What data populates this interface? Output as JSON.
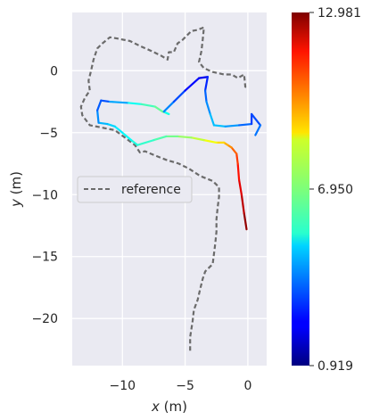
{
  "chart_data": {
    "type": "line",
    "xlabel_var": "x",
    "xlabel_unit": " (m)",
    "ylabel_var": "y",
    "ylabel_unit": " (m)",
    "xlim": [
      -14,
      1.5
    ],
    "ylim": [
      -23.8,
      4.7
    ],
    "x_ticks": [
      -10,
      -5,
      0
    ],
    "x_tick_labels": [
      "−10",
      "−5",
      "0"
    ],
    "y_ticks": [
      0,
      -5,
      -10,
      -15,
      -20
    ],
    "y_tick_labels": [
      "0",
      "−5",
      "−10",
      "−15",
      "−20"
    ],
    "grid": true,
    "legend_placement": "center-left",
    "colorbar": {
      "min": 0.919,
      "max": 12.981,
      "ticks": [
        12.981,
        6.95,
        0.919
      ],
      "tick_labels": [
        "12.981",
        "6.950",
        "0.919"
      ],
      "colormap": "jet"
    },
    "series": [
      {
        "name": "reference",
        "style": "dashed",
        "color": "#6b6b6b",
        "points": [
          [
            -4.6,
            -22.6
          ],
          [
            -4.6,
            -21.5
          ],
          [
            -4.4,
            -20.2
          ],
          [
            -4.3,
            -19.3
          ],
          [
            -4.0,
            -18.5
          ],
          [
            -3.8,
            -17.6
          ],
          [
            -3.6,
            -16.8
          ],
          [
            -3.4,
            -16.2
          ],
          [
            -2.8,
            -15.6
          ],
          [
            -2.7,
            -14.8
          ],
          [
            -2.6,
            -14.0
          ],
          [
            -2.5,
            -13.0
          ],
          [
            -2.5,
            -12.0
          ],
          [
            -2.4,
            -11.0
          ],
          [
            -2.3,
            -10.2
          ],
          [
            -2.3,
            -9.4
          ],
          [
            -2.8,
            -8.9
          ],
          [
            -3.8,
            -8.5
          ],
          [
            -4.7,
            -7.9
          ],
          [
            -5.5,
            -7.5
          ],
          [
            -6.5,
            -7.2
          ],
          [
            -7.5,
            -6.8
          ],
          [
            -8.2,
            -6.5
          ],
          [
            -8.6,
            -6.6
          ],
          [
            -9.0,
            -6.0
          ],
          [
            -9.8,
            -5.4
          ],
          [
            -10.6,
            -4.8
          ],
          [
            -11.6,
            -4.6
          ],
          [
            -12.6,
            -4.4
          ],
          [
            -13.2,
            -3.6
          ],
          [
            -13.3,
            -2.9
          ],
          [
            -13.0,
            -2.2
          ],
          [
            -12.6,
            -1.6
          ],
          [
            -12.7,
            -0.8
          ],
          [
            -12.5,
            0.0
          ],
          [
            -12.3,
            0.9
          ],
          [
            -12.0,
            1.8
          ],
          [
            -11.6,
            2.2
          ],
          [
            -11.0,
            2.7
          ],
          [
            -10.4,
            2.6
          ],
          [
            -9.4,
            2.4
          ],
          [
            -8.6,
            2.0
          ],
          [
            -7.7,
            1.6
          ],
          [
            -6.9,
            1.2
          ],
          [
            -6.4,
            0.9
          ],
          [
            -6.3,
            1.5
          ],
          [
            -5.9,
            1.5
          ],
          [
            -5.6,
            2.2
          ],
          [
            -5.2,
            2.5
          ],
          [
            -4.5,
            3.2
          ],
          [
            -4.0,
            3.3
          ],
          [
            -3.5,
            3.5
          ],
          [
            -3.6,
            2.5
          ],
          [
            -3.7,
            1.6
          ],
          [
            -3.9,
            0.7
          ],
          [
            -3.5,
            0.2
          ],
          [
            -2.8,
            -0.1
          ],
          [
            -1.9,
            -0.3
          ],
          [
            -1.3,
            -0.3
          ],
          [
            -0.8,
            -0.6
          ],
          [
            -0.3,
            -0.3
          ],
          [
            -0.2,
            -1.3
          ],
          [
            -0.4,
            -1.5
          ]
        ]
      },
      {
        "name": "",
        "style": "colored",
        "points": [
          [
            -0.1,
            -12.8,
            12.981
          ],
          [
            -0.3,
            -11.5,
            12.5
          ],
          [
            -0.5,
            -10.0,
            12.0
          ],
          [
            -0.7,
            -8.8,
            11.6
          ],
          [
            -0.8,
            -7.5,
            11.0
          ],
          [
            -0.9,
            -6.7,
            10.6
          ],
          [
            -1.3,
            -6.2,
            10.0
          ],
          [
            -1.6,
            -6.0,
            9.6
          ],
          [
            -1.9,
            -5.8,
            9.2
          ],
          [
            -2.5,
            -5.8,
            8.6
          ],
          [
            -3.5,
            -5.6,
            8.0
          ],
          [
            -4.5,
            -5.4,
            7.5
          ],
          [
            -5.6,
            -5.3,
            7.0
          ],
          [
            -6.5,
            -5.3,
            6.6
          ],
          [
            -7.5,
            -5.6,
            6.2
          ],
          [
            -8.8,
            -6.0,
            5.9
          ],
          [
            -9.3,
            -5.6,
            5.7
          ],
          [
            -10.0,
            -5.0,
            5.4
          ],
          [
            -10.6,
            -4.5,
            5.1
          ],
          [
            -11.2,
            -4.3,
            4.8
          ],
          [
            -11.9,
            -4.2,
            4.4
          ],
          [
            -12.0,
            -3.2,
            3.8
          ],
          [
            -11.7,
            -2.4,
            3.2
          ],
          [
            -11.0,
            -2.5,
            3.6
          ],
          [
            -9.5,
            -2.6,
            5.2
          ],
          [
            -8.5,
            -2.7,
            6.0
          ],
          [
            -7.4,
            -2.9,
            6.5
          ],
          [
            -6.8,
            -3.3,
            6.8
          ],
          [
            -6.3,
            -3.5,
            7.0
          ],
          [
            -6.7,
            -3.3,
            4.2
          ],
          [
            -5.9,
            -2.5,
            3.8
          ],
          [
            -5.0,
            -1.6,
            2.8
          ],
          [
            -3.9,
            -0.6,
            2.2
          ],
          [
            -3.2,
            -0.5,
            2.3
          ],
          [
            -3.4,
            -1.6,
            3.4
          ],
          [
            -3.3,
            -2.5,
            3.8
          ],
          [
            -3.0,
            -3.5,
            4.4
          ],
          [
            -2.7,
            -4.4,
            4.9
          ],
          [
            -1.8,
            -4.5,
            4.5
          ],
          [
            -0.7,
            -4.4,
            4.0
          ],
          [
            0.3,
            -4.3,
            3.3
          ],
          [
            0.3,
            -3.5,
            3.0
          ],
          [
            1.0,
            -4.4,
            3.6
          ],
          [
            0.6,
            -5.2,
            4.0
          ]
        ]
      }
    ]
  }
}
